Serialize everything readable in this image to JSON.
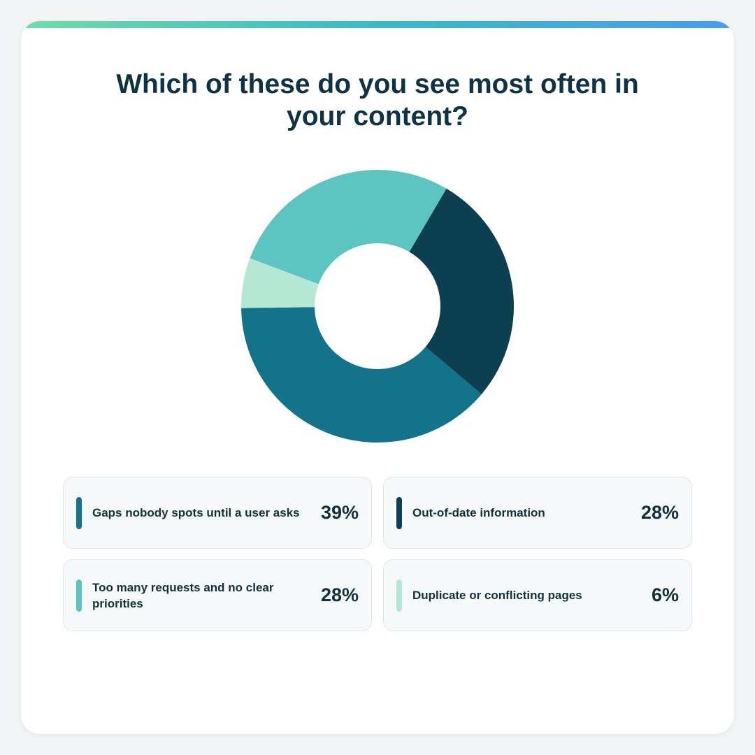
{
  "chart_data": {
    "type": "donut",
    "title": "Which of these do you see most often in your content?",
    "categories": [
      "Gaps nobody spots until a user asks",
      "Out-of-date information",
      "Too many requests and no clear priorities",
      "Duplicate or conflicting pages"
    ],
    "values": [
      39,
      28,
      28,
      6
    ],
    "value_labels": [
      "39%",
      "28%",
      "28%",
      "6%"
    ],
    "colors": [
      "#12738a",
      "#0c4050",
      "#5cc5c1",
      "#b5e8d4"
    ]
  }
}
